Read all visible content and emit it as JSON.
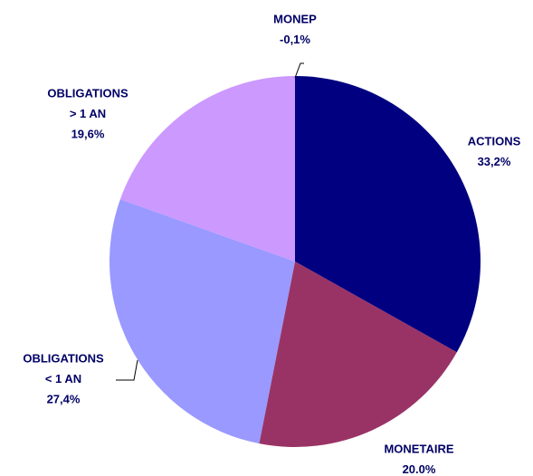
{
  "chart_data": {
    "type": "pie",
    "categories": [
      [
        "ACTIONS"
      ],
      [
        "MONETAIRE"
      ],
      [
        "OBLIGATIONS",
        "< 1 AN"
      ],
      [
        "OBLIGATIONS",
        "> 1 AN"
      ],
      [
        "MONEP"
      ]
    ],
    "values": [
      33.2,
      20.0,
      27.4,
      19.6,
      -0.1
    ],
    "value_labels": [
      "33,2%",
      "20.0%",
      "27,4%",
      "19,6%",
      "-0,1%"
    ],
    "colors": [
      "#000080",
      "#993366",
      "#9999ff",
      "#cc99ff",
      "#000080"
    ]
  }
}
